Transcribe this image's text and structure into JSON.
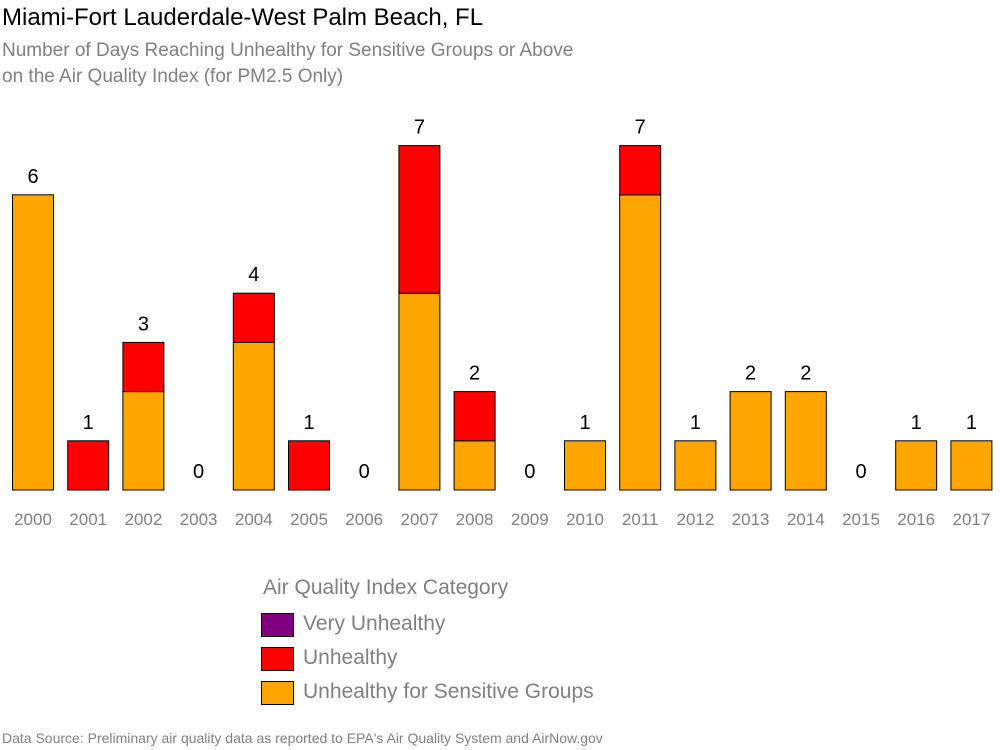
{
  "chart_data": {
    "type": "bar",
    "stacked": true,
    "title": "Miami-Fort Lauderdale-West Palm Beach, FL",
    "subtitle_lines": [
      "Number of Days Reaching Unhealthy for Sensitive Groups or Above",
      "on the Air Quality Index (for PM2.5 Only)"
    ],
    "categories": [
      "2000",
      "2001",
      "2002",
      "2003",
      "2004",
      "2005",
      "2006",
      "2007",
      "2008",
      "2009",
      "2010",
      "2011",
      "2012",
      "2013",
      "2014",
      "2015",
      "2016",
      "2017"
    ],
    "series": [
      {
        "name": "Unhealthy for Sensitive Groups",
        "color": "#FFA500",
        "values": [
          6,
          0,
          2,
          0,
          3,
          0,
          0,
          4,
          1,
          0,
          1,
          6,
          1,
          2,
          2,
          0,
          1,
          1
        ]
      },
      {
        "name": "Unhealthy",
        "color": "#FF0000",
        "values": [
          0,
          1,
          1,
          0,
          1,
          1,
          0,
          3,
          1,
          0,
          0,
          1,
          0,
          0,
          0,
          0,
          0,
          0
        ]
      },
      {
        "name": "Very Unhealthy",
        "color": "#800080",
        "values": [
          0,
          0,
          0,
          0,
          0,
          0,
          0,
          0,
          0,
          0,
          0,
          0,
          0,
          0,
          0,
          0,
          0,
          0
        ]
      }
    ],
    "totals": [
      6,
      1,
      3,
      0,
      4,
      1,
      0,
      7,
      2,
      0,
      1,
      7,
      1,
      2,
      2,
      0,
      1,
      1
    ],
    "ylim": [
      0,
      7
    ],
    "grid": false
  },
  "legend": {
    "title": "Air Quality Index Category",
    "items": [
      {
        "label": "Very Unhealthy",
        "color": "#800080"
      },
      {
        "label": "Unhealthy",
        "color": "#FF0000"
      },
      {
        "label": "Unhealthy for Sensitive Groups",
        "color": "#FFA500"
      }
    ]
  },
  "source": "Data Source: Preliminary air quality data as reported to EPA's Air Quality System and AirNow.gov"
}
